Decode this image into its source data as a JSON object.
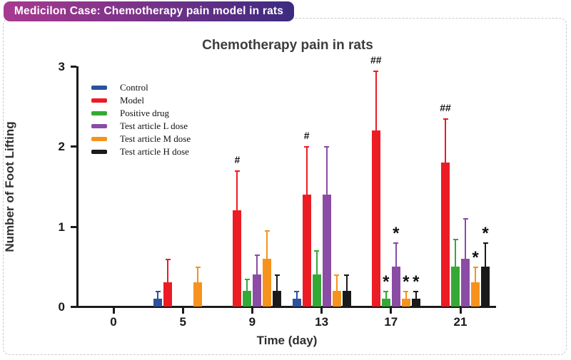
{
  "page": {
    "badge": "Medicilon Case: Chemotherapy pain model in rats"
  },
  "chart_data": {
    "type": "bar",
    "title": "Chemotherapy pain in rats",
    "xlabel": "Time (day)",
    "ylabel": "Number of Foot Lifting",
    "ylim": [
      0,
      3
    ],
    "yticks": [
      "0",
      "1",
      "2",
      "3"
    ],
    "categories": [
      "0",
      "5",
      "9",
      "13",
      "17",
      "21"
    ],
    "grid": false,
    "legend_position": "upper-left-inside",
    "series": [
      {
        "name": "Control",
        "color": "#2a52a0",
        "values": [
          0,
          0.1,
          0,
          0.1,
          0,
          0
        ],
        "error_up": [
          0,
          0.1,
          0,
          0.1,
          0,
          0
        ]
      },
      {
        "name": "Model",
        "color": "#ec1c24",
        "values": [
          0,
          0.3,
          1.2,
          1.4,
          2.2,
          1.8
        ],
        "error_up": [
          0,
          0.3,
          0.5,
          0.6,
          0.75,
          0.55
        ]
      },
      {
        "name": "Positive drug",
        "color": "#35a935",
        "values": [
          0,
          0,
          0.2,
          0.4,
          0.1,
          0.5
        ],
        "error_up": [
          0,
          0,
          0.15,
          0.3,
          0.1,
          0.35
        ]
      },
      {
        "name": "Test article L dose",
        "color": "#8a4ca4",
        "values": [
          0,
          0,
          0.4,
          1.4,
          0.5,
          0.6
        ],
        "error_up": [
          0,
          0,
          0.25,
          0.6,
          0.3,
          0.5
        ]
      },
      {
        "name": "Test article M dose",
        "color": "#f6921e",
        "values": [
          0,
          0.3,
          0.6,
          0.2,
          0.1,
          0.3
        ],
        "error_up": [
          0,
          0.2,
          0.35,
          0.2,
          0.1,
          0.2
        ]
      },
      {
        "name": "Test article H dose",
        "color": "#1a1a1a",
        "values": [
          0,
          0,
          0.2,
          0.2,
          0.1,
          0.5
        ],
        "error_up": [
          0,
          0,
          0.2,
          0.2,
          0.1,
          0.3
        ]
      }
    ],
    "annotations": [
      {
        "series": "Model",
        "category": "9",
        "symbol": "#"
      },
      {
        "series": "Model",
        "category": "13",
        "symbol": "#"
      },
      {
        "series": "Model",
        "category": "17",
        "symbol": "##"
      },
      {
        "series": "Model",
        "category": "21",
        "symbol": "##"
      },
      {
        "series": "Positive drug",
        "category": "17",
        "symbol": "*"
      },
      {
        "series": "Test article L dose",
        "category": "17",
        "symbol": "*"
      },
      {
        "series": "Test article M dose",
        "category": "17",
        "symbol": "*"
      },
      {
        "series": "Test article H dose",
        "category": "17",
        "symbol": "*"
      },
      {
        "series": "Test article M dose",
        "category": "21",
        "symbol": "*"
      },
      {
        "series": "Test article H dose",
        "category": "21",
        "symbol": "*"
      }
    ]
  }
}
